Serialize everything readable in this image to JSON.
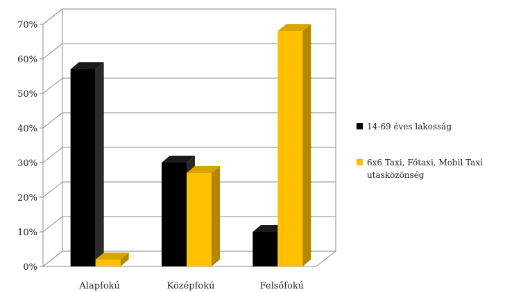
{
  "chart_data": {
    "type": "bar",
    "categories": [
      "Alapfokú",
      "Középfokú",
      "Felsőfokú"
    ],
    "series": [
      {
        "name": "14-69 éves lakosság",
        "values": [
          57,
          30,
          10
        ],
        "color": "#000000",
        "side_color": "#2a2a2a",
        "top_color": "#1a1a1a"
      },
      {
        "name_lines": [
          "6x6 Taxi, Főtaxi, Mobil Taxi",
          "utasközönség"
        ],
        "values": [
          2,
          27,
          68
        ],
        "color": "#ffc000",
        "side_color": "#b38700",
        "top_color": "#d9a400"
      }
    ],
    "ylim": [
      0,
      70
    ],
    "y_ticks": [
      "0%",
      "10%",
      "20%",
      "30%",
      "40%",
      "50%",
      "60%",
      "70%"
    ],
    "grid": true,
    "legend_position": "right"
  }
}
